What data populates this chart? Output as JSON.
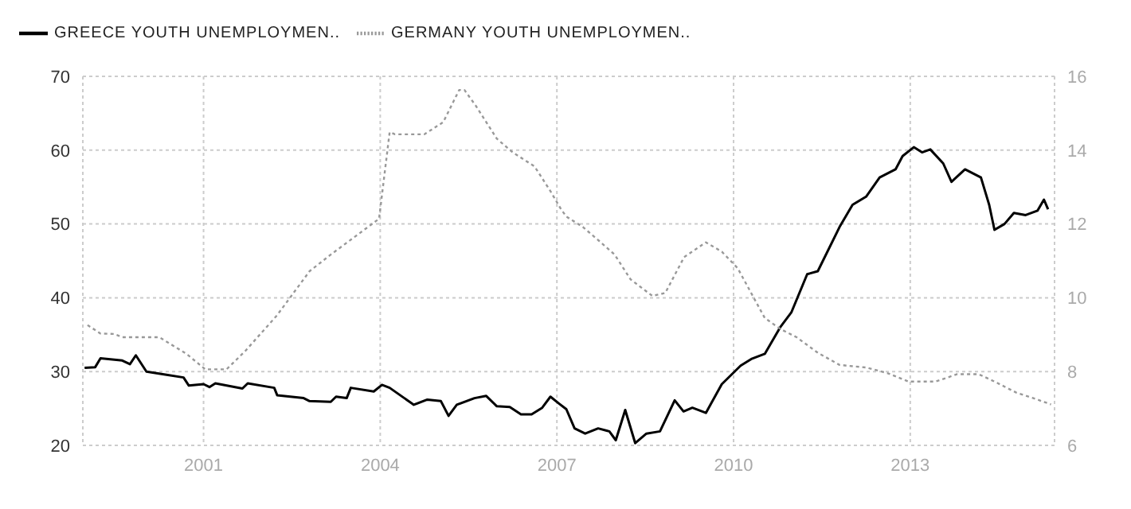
{
  "chart_data": {
    "type": "line",
    "legend": "top left",
    "grid": true,
    "marker": "none",
    "xlim": [
      1998.95,
      2015.45
    ],
    "xticks": [
      2001,
      2004,
      2007,
      2010,
      2013
    ],
    "ylim": [
      20,
      70
    ],
    "yticks": [
      20,
      30,
      40,
      50,
      60,
      70
    ],
    "y2lim": [
      6,
      16
    ],
    "y2ticks": [
      6,
      8,
      10,
      12,
      14,
      16
    ],
    "series": [
      {
        "name": "GREECE YOUTH UNEMPLOYMEN..",
        "color": "#000000",
        "line_style": "solid",
        "x": [
          1998.98,
          1999.16,
          1999.25,
          1999.62,
          1999.75,
          1999.85,
          2000.03,
          2000.35,
          2000.66,
          2000.75,
          2001.0,
          2001.1,
          2001.2,
          2001.66,
          2001.75,
          2002.2,
          2002.25,
          2002.7,
          2002.8,
          2003.16,
          2003.25,
          2003.43,
          2003.5,
          2003.89,
          2004.03,
          2004.16,
          2004.57,
          2004.8,
          2005.03,
          2005.16,
          2005.3,
          2005.6,
          2005.8,
          2005.98,
          2006.2,
          2006.39,
          2006.57,
          2006.75,
          2006.89,
          2007.03,
          2007.16,
          2007.3,
          2007.48,
          2007.7,
          2007.89,
          2008.0,
          2008.16,
          2008.33,
          2008.52,
          2008.75,
          2009.0,
          2009.15,
          2009.3,
          2009.53,
          2009.8,
          2010.12,
          2010.3,
          2010.53,
          2010.8,
          2010.98,
          2011.25,
          2011.43,
          2011.8,
          2012.02,
          2012.25,
          2012.48,
          2012.75,
          2012.87,
          2013.06,
          2013.2,
          2013.34,
          2013.56,
          2013.7,
          2013.93,
          2014.2,
          2014.34,
          2014.43,
          2014.6,
          2014.76,
          2014.96,
          2015.16,
          2015.27,
          2015.34
        ],
        "values": [
          30.5,
          30.6,
          31.8,
          31.5,
          31.0,
          32.2,
          30.0,
          29.6,
          29.2,
          28.1,
          28.3,
          27.9,
          28.4,
          27.7,
          28.4,
          27.8,
          26.8,
          26.4,
          26.0,
          25.9,
          26.6,
          26.4,
          27.8,
          27.3,
          28.2,
          27.8,
          25.5,
          26.2,
          26.0,
          24.0,
          25.5,
          26.4,
          26.7,
          25.3,
          25.2,
          24.2,
          24.2,
          25.1,
          26.6,
          25.7,
          24.9,
          22.3,
          21.6,
          22.3,
          21.9,
          20.7,
          24.8,
          20.3,
          21.6,
          21.9,
          26.1,
          24.6,
          25.1,
          24.4,
          28.3,
          30.8,
          31.7,
          32.4,
          36.1,
          38.0,
          43.2,
          43.6,
          49.6,
          52.6,
          53.7,
          56.3,
          57.4,
          59.2,
          60.4,
          59.7,
          60.1,
          58.2,
          55.7,
          57.4,
          56.3,
          52.6,
          49.2,
          50.0,
          51.5,
          51.2,
          51.8,
          53.3,
          52.0
        ]
      },
      {
        "name": "GERMANY YOUTH UNEMPLOYMEN..",
        "color": "#999999",
        "line_style": "dotted",
        "axis": "y2",
        "x": [
          1999.03,
          1999.25,
          1999.48,
          1999.62,
          2000.25,
          2000.71,
          2001.03,
          2001.39,
          2001.71,
          2002.25,
          2002.8,
          2003.16,
          2003.98,
          2004.16,
          2004.25,
          2004.75,
          2005.07,
          2005.34,
          2005.43,
          2005.62,
          2005.98,
          2006.25,
          2006.62,
          2006.89,
          2007.07,
          2007.16,
          2007.44,
          2007.71,
          2007.98,
          2008.25,
          2008.62,
          2008.84,
          2009.16,
          2009.53,
          2009.8,
          2010.07,
          2010.53,
          2010.8,
          2011.07,
          2011.43,
          2011.8,
          2012.25,
          2012.61,
          2012.97,
          2013.43,
          2013.8,
          2014.16,
          2014.43,
          2014.8,
          2015.07,
          2015.39
        ],
        "values": [
          9.26,
          9.03,
          9.02,
          8.93,
          8.93,
          8.48,
          8.06,
          8.06,
          8.56,
          9.53,
          10.72,
          11.17,
          12.14,
          14.49,
          14.43,
          14.43,
          14.76,
          15.63,
          15.63,
          15.21,
          14.31,
          13.94,
          13.56,
          12.89,
          12.4,
          12.2,
          11.92,
          11.55,
          11.17,
          10.5,
          10.05,
          10.13,
          11.1,
          11.5,
          11.25,
          10.8,
          9.45,
          9.15,
          8.93,
          8.51,
          8.18,
          8.11,
          7.96,
          7.73,
          7.73,
          7.93,
          7.93,
          7.73,
          7.43,
          7.29,
          7.11
        ]
      }
    ]
  }
}
